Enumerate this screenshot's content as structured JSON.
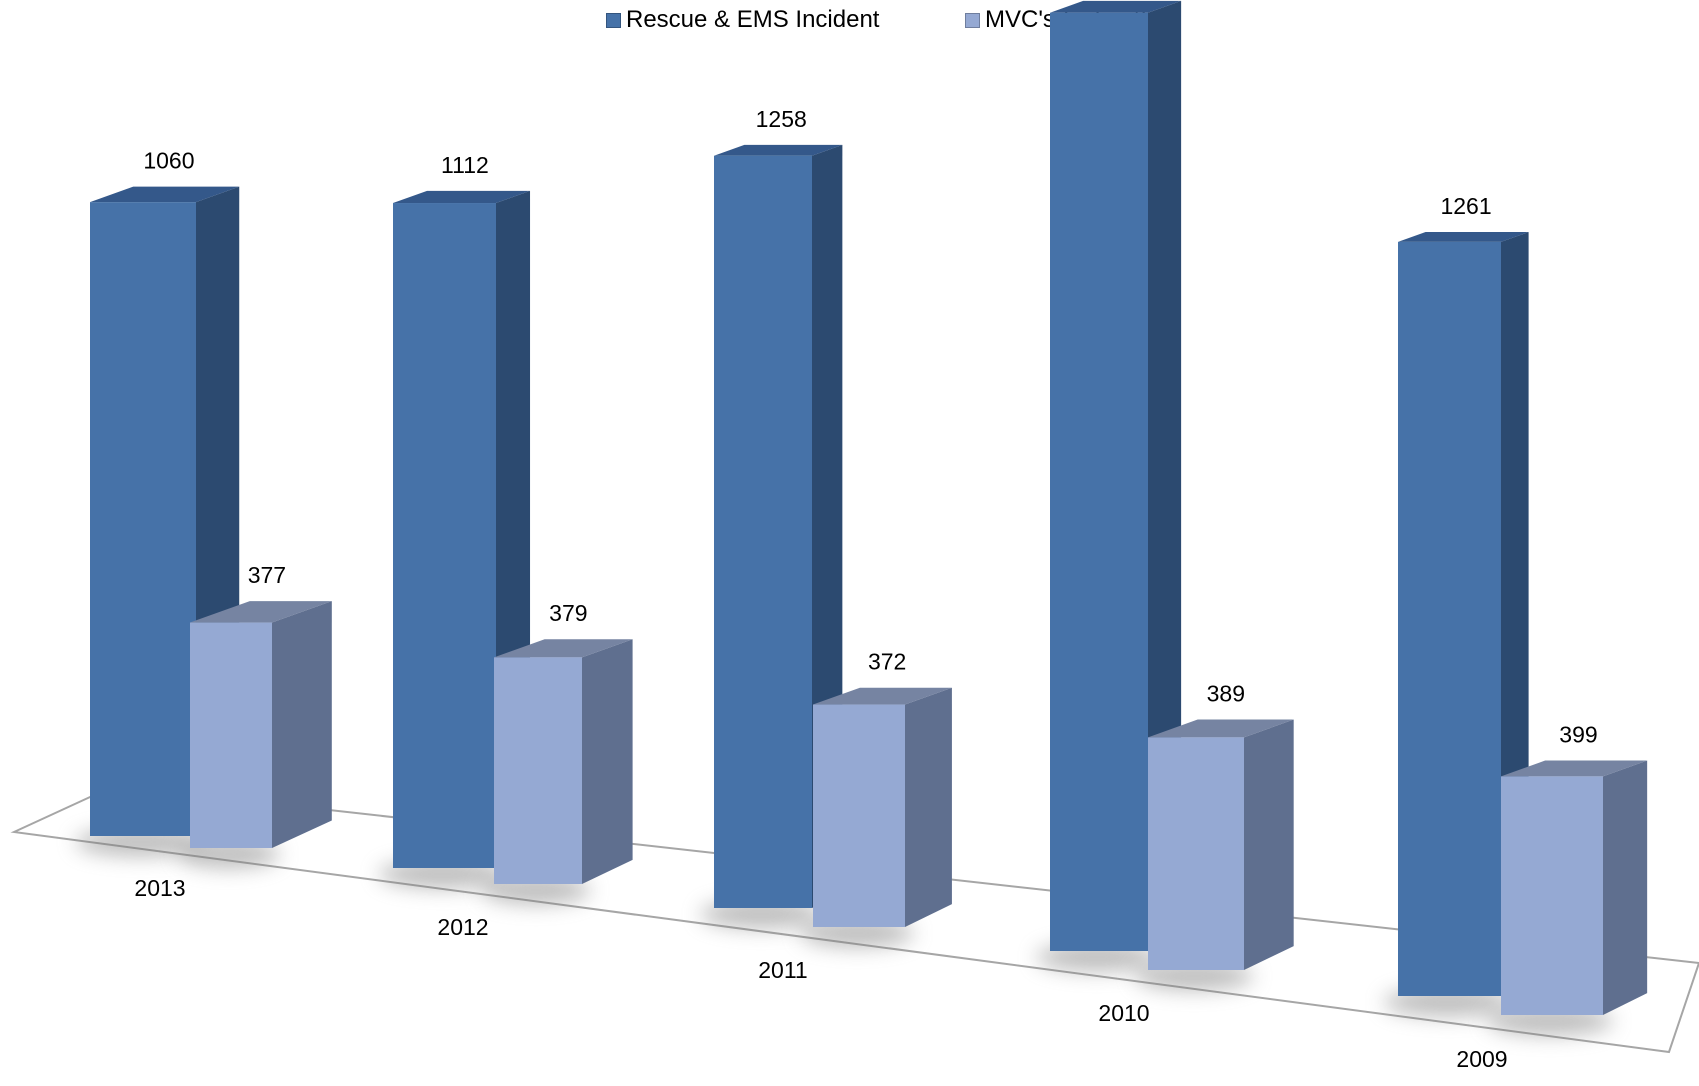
{
  "chart_data": {
    "type": "bar",
    "categories": [
      "2013",
      "2012",
      "2011",
      "2010",
      "2009"
    ],
    "series": [
      {
        "name": "Rescue & EMS Incident",
        "values": [
          1060,
          1112,
          1258,
          1569,
          1261
        ]
      },
      {
        "name": "MVC's (subset)",
        "values": [
          377,
          379,
          372,
          389,
          399
        ]
      }
    ],
    "data_labels": true,
    "legend_position": "top",
    "style": "3d-column",
    "colors": {
      "series1_front": "#4672A8",
      "series1_side": "#2C4A70",
      "series1_top": "#34588A",
      "series2_front": "#95A9D3",
      "series2_side": "#5F6F8F",
      "series2_top": "#7684A2",
      "floor_stroke": "#A6A6A6"
    }
  }
}
